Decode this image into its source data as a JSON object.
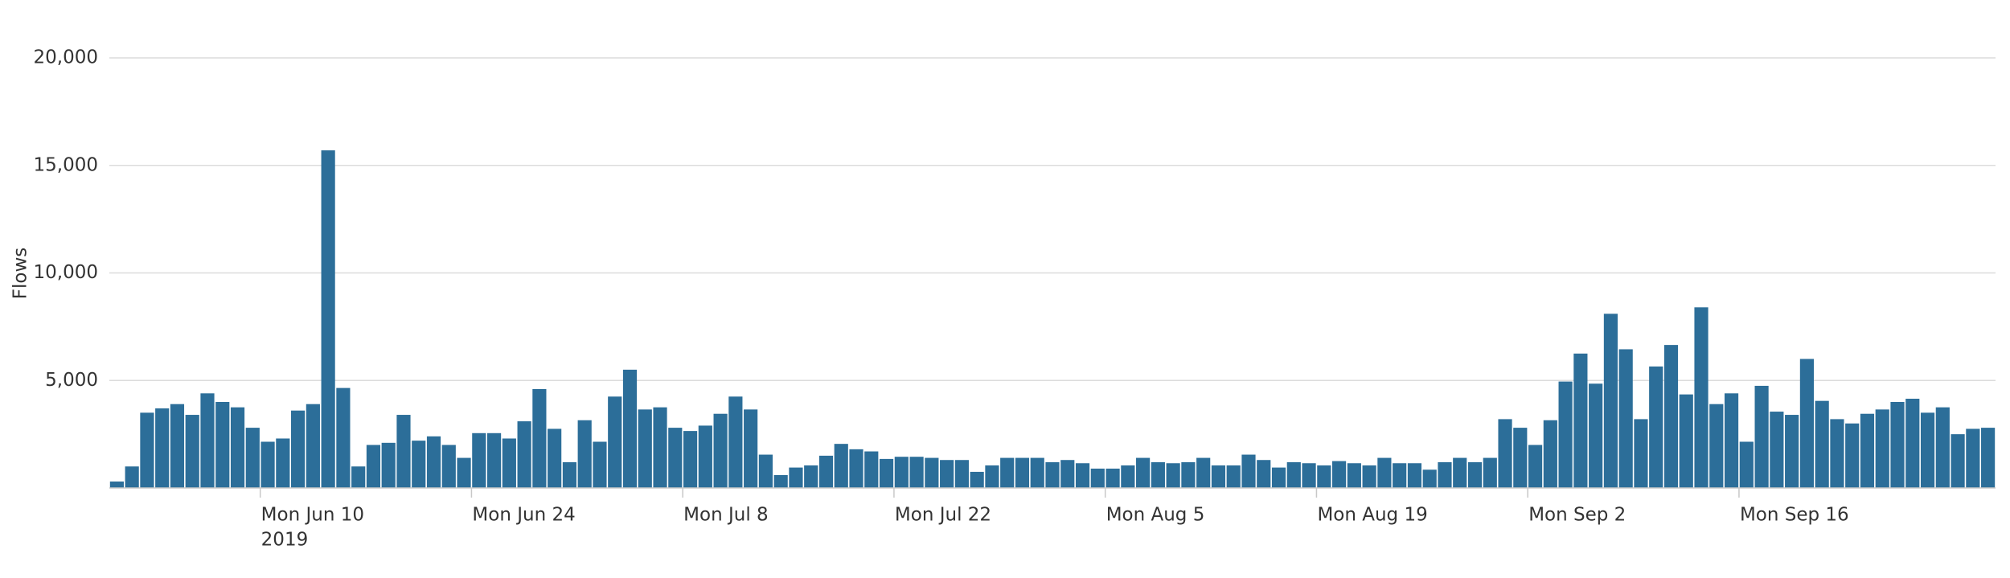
{
  "chart_data": {
    "type": "bar",
    "ylabel": "Flows",
    "color": "#2c6e99",
    "x": [
      "2019-05-31",
      "2019-06-01",
      "2019-06-02",
      "2019-06-03",
      "2019-06-04",
      "2019-06-05",
      "2019-06-06",
      "2019-06-07",
      "2019-06-08",
      "2019-06-09",
      "2019-06-10",
      "2019-06-11",
      "2019-06-12",
      "2019-06-13",
      "2019-06-14",
      "2019-06-15",
      "2019-06-16",
      "2019-06-17",
      "2019-06-18",
      "2019-06-19",
      "2019-06-20",
      "2019-06-21",
      "2019-06-22",
      "2019-06-23",
      "2019-06-24",
      "2019-06-25",
      "2019-06-26",
      "2019-06-27",
      "2019-06-28",
      "2019-06-29",
      "2019-06-30",
      "2019-07-01",
      "2019-07-02",
      "2019-07-03",
      "2019-07-04",
      "2019-07-05",
      "2019-07-06",
      "2019-07-07",
      "2019-07-08",
      "2019-07-09",
      "2019-07-10",
      "2019-07-11",
      "2019-07-12",
      "2019-07-13",
      "2019-07-14",
      "2019-07-15",
      "2019-07-16",
      "2019-07-17",
      "2019-07-18",
      "2019-07-19",
      "2019-07-20",
      "2019-07-21",
      "2019-07-22",
      "2019-07-23",
      "2019-07-24",
      "2019-07-25",
      "2019-07-26",
      "2019-07-27",
      "2019-07-28",
      "2019-07-29",
      "2019-07-30",
      "2019-07-31",
      "2019-08-01",
      "2019-08-02",
      "2019-08-03",
      "2019-08-04",
      "2019-08-05",
      "2019-08-06",
      "2019-08-07",
      "2019-08-08",
      "2019-08-09",
      "2019-08-10",
      "2019-08-11",
      "2019-08-12",
      "2019-08-13",
      "2019-08-14",
      "2019-08-15",
      "2019-08-16",
      "2019-08-17",
      "2019-08-18",
      "2019-08-19",
      "2019-08-20",
      "2019-08-21",
      "2019-08-22",
      "2019-08-23",
      "2019-08-24",
      "2019-08-25",
      "2019-08-26",
      "2019-08-27",
      "2019-08-28",
      "2019-08-29",
      "2019-08-30",
      "2019-08-31",
      "2019-09-01",
      "2019-09-02",
      "2019-09-03",
      "2019-09-04",
      "2019-09-05",
      "2019-09-06",
      "2019-09-07",
      "2019-09-08",
      "2019-09-09",
      "2019-09-10",
      "2019-09-11",
      "2019-09-12",
      "2019-09-13",
      "2019-09-14",
      "2019-09-15",
      "2019-09-16",
      "2019-09-17",
      "2019-09-18",
      "2019-09-19",
      "2019-09-20",
      "2019-09-21",
      "2019-09-22",
      "2019-09-23",
      "2019-09-24",
      "2019-09-25",
      "2019-09-26",
      "2019-09-27",
      "2019-09-28",
      "2019-09-29",
      "2019-09-30",
      "2019-10-01",
      "2019-10-02"
    ],
    "values": [
      300,
      1000,
      3500,
      3700,
      3900,
      3400,
      4400,
      4000,
      3750,
      2800,
      2150,
      2300,
      3600,
      3900,
      15700,
      4650,
      1000,
      2000,
      2100,
      3400,
      2200,
      2400,
      2000,
      1400,
      2550,
      2550,
      2300,
      3100,
      4600,
      2750,
      1200,
      3150,
      2150,
      4250,
      5500,
      3650,
      3750,
      2800,
      2650,
      2900,
      3450,
      4250,
      3650,
      1550,
      600,
      950,
      1050,
      1500,
      2050,
      1800,
      1700,
      1350,
      1450,
      1450,
      1400,
      1300,
      1300,
      750,
      1050,
      1400,
      1400,
      1400,
      1200,
      1300,
      1150,
      900,
      900,
      1050,
      1400,
      1200,
      1150,
      1200,
      1400,
      1050,
      1050,
      1550,
      1300,
      950,
      1200,
      1150,
      1050,
      1250,
      1150,
      1050,
      1400,
      1150,
      1150,
      850,
      1200,
      1400,
      1200,
      1400,
      3200,
      2800,
      2000,
      3150,
      4950,
      6250,
      4850,
      8100,
      6450,
      3200,
      5650,
      6650,
      4350,
      8400,
      3900,
      4400,
      2150,
      4750,
      3550,
      3400,
      6000,
      4050,
      3200,
      3000,
      3450,
      3650,
      4000,
      4150,
      3500,
      3750,
      2500,
      2750,
      2800
    ],
    "ylim": [
      0,
      20000
    ],
    "yticks": [
      {
        "value": 5000,
        "label": "5,000"
      },
      {
        "value": 10000,
        "label": "10,000"
      },
      {
        "value": 15000,
        "label": "15,000"
      },
      {
        "value": 20000,
        "label": "20,000"
      }
    ],
    "xticks": [
      {
        "value": "2019-06-10",
        "label": "Mon Jun 10",
        "sublabel": "2019"
      },
      {
        "value": "2019-06-24",
        "label": "Mon Jun 24"
      },
      {
        "value": "2019-07-08",
        "label": "Mon Jul 8"
      },
      {
        "value": "2019-07-22",
        "label": "Mon Jul 22"
      },
      {
        "value": "2019-08-05",
        "label": "Mon Aug 5"
      },
      {
        "value": "2019-08-19",
        "label": "Mon Aug 19"
      },
      {
        "value": "2019-09-02",
        "label": "Mon Sep 2"
      },
      {
        "value": "2019-09-16",
        "label": "Mon Sep 16"
      }
    ],
    "grid": true
  }
}
